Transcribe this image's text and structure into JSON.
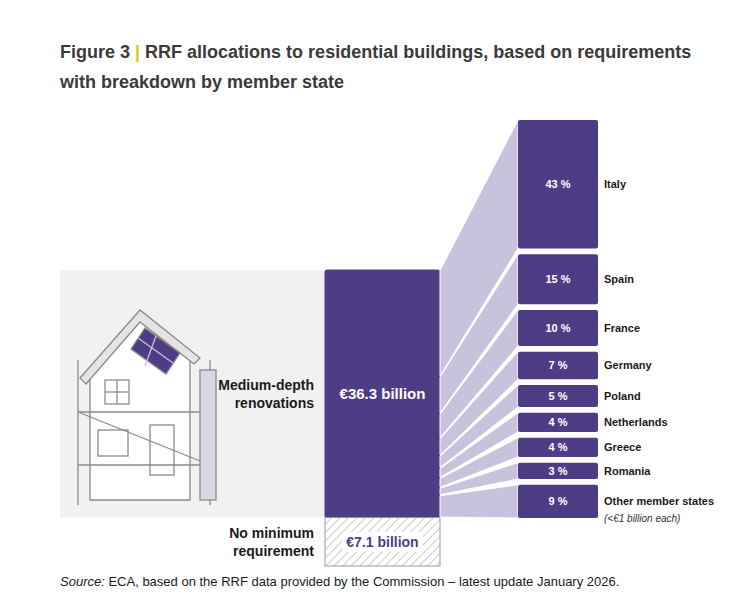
{
  "chart_data": [
    {
      "type": "bar",
      "title": "Figure 3 | RRF allocations to residential buildings, based on requirements with breakdown by member state",
      "stacked": true,
      "categories": [
        "Medium-depth renovations",
        "No minimum requirement"
      ],
      "values": [
        36.3,
        7.1
      ],
      "value_labels": [
        "€36.3 billion",
        "€7.1 billion"
      ],
      "data_labels": true,
      "tick_labels": false,
      "color": "#4e3d84",
      "annotations": [
        "Source: ECA, based on the RRF data provided by the Commission – latest update January 2026."
      ]
    },
    {
      "type": "bar",
      "categories": [
        "Italy",
        "Spain",
        "France",
        "Germany",
        "Poland",
        "Netherlands",
        "Greece",
        "Romania",
        "Other member states"
      ],
      "values": [
        43,
        15,
        10,
        7,
        5,
        4,
        4,
        3,
        9
      ],
      "value_labels": [
        "43 %",
        "15 %",
        "10 %",
        "7 %",
        "5 %",
        "4 %",
        "4 %",
        "3 %",
        "9 %"
      ],
      "data_labels": true,
      "tick_labels": false,
      "color": "#4e3d84",
      "annotations": [
        "(<€1 billion each)"
      ]
    }
  ]
}
